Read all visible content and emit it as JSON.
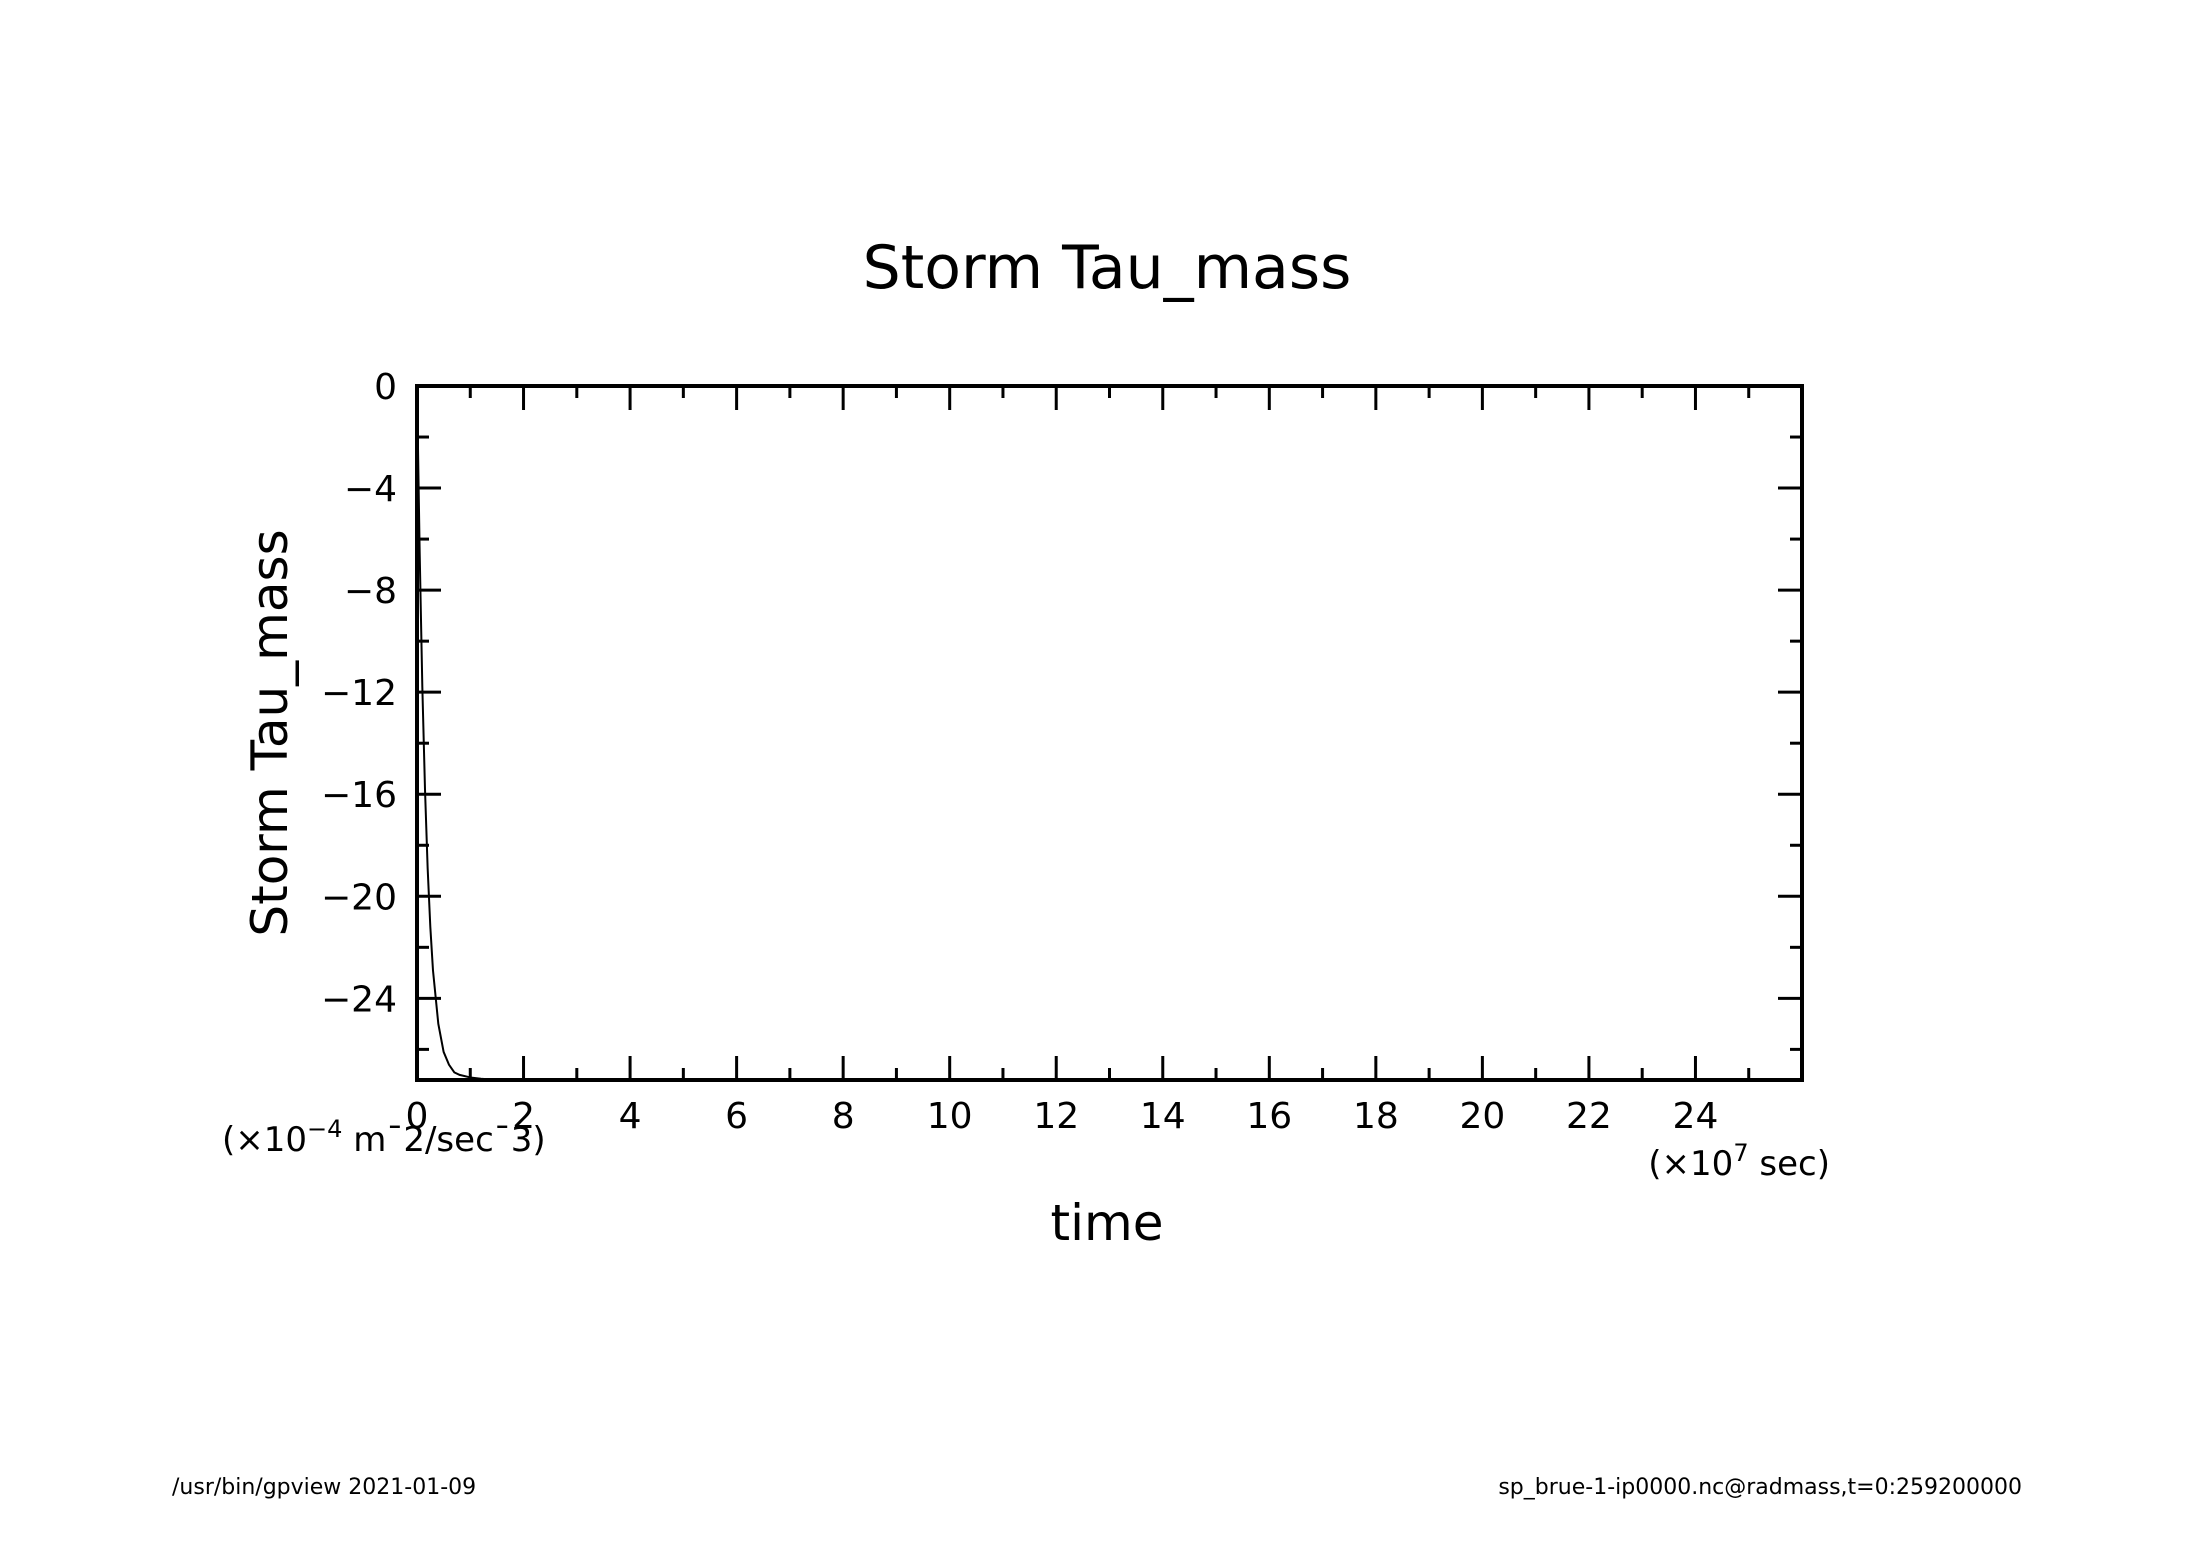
{
  "chart_data": {
    "type": "line",
    "title": "Storm Tau_mass",
    "xlabel": "time",
    "ylabel": "Storm Tau_mass",
    "x_unit": {
      "prefix": "(×10",
      "exp": "7",
      "suffix": " sec)"
    },
    "y_unit": {
      "prefix": "(×10",
      "exp": "−4",
      "suffix": " m¯2/sec¯3)"
    },
    "xlim": [
      0,
      26
    ],
    "ylim": [
      -27.2,
      0
    ],
    "x_ticks": [
      0,
      2,
      4,
      6,
      8,
      10,
      12,
      14,
      16,
      18,
      20,
      22,
      24
    ],
    "x_tick_labels": [
      "0",
      "2",
      "4",
      "6",
      "8",
      "10",
      "12",
      "14",
      "16",
      "18",
      "20",
      "22",
      "24"
    ],
    "y_ticks": [
      0,
      -4,
      -8,
      -12,
      -16,
      -20,
      -24
    ],
    "y_tick_labels": [
      "0",
      "−4",
      "−8",
      "−12",
      "−16",
      "−20",
      "−24"
    ],
    "grid": false,
    "series": [
      {
        "x": [
          0,
          0.05,
          0.1,
          0.15,
          0.2,
          0.25,
          0.3,
          0.4,
          0.5,
          0.6,
          0.7,
          0.8,
          1.0,
          1.2,
          1.5,
          2.0,
          2.5,
          3.0,
          26
        ],
        "y": [
          0,
          -6.5,
          -11.8,
          -15.8,
          -18.9,
          -21.2,
          -22.9,
          -25.0,
          -26.1,
          -26.6,
          -26.9,
          -27.0,
          -27.1,
          -27.15,
          -27.2,
          -27.2,
          -27.2,
          -27.2,
          -27.2
        ]
      }
    ]
  },
  "footer": {
    "left": "/usr/bin/gpview   2021-01-09",
    "right": "sp_brue-1-ip0000.nc@radmass,t=0:259200000"
  }
}
